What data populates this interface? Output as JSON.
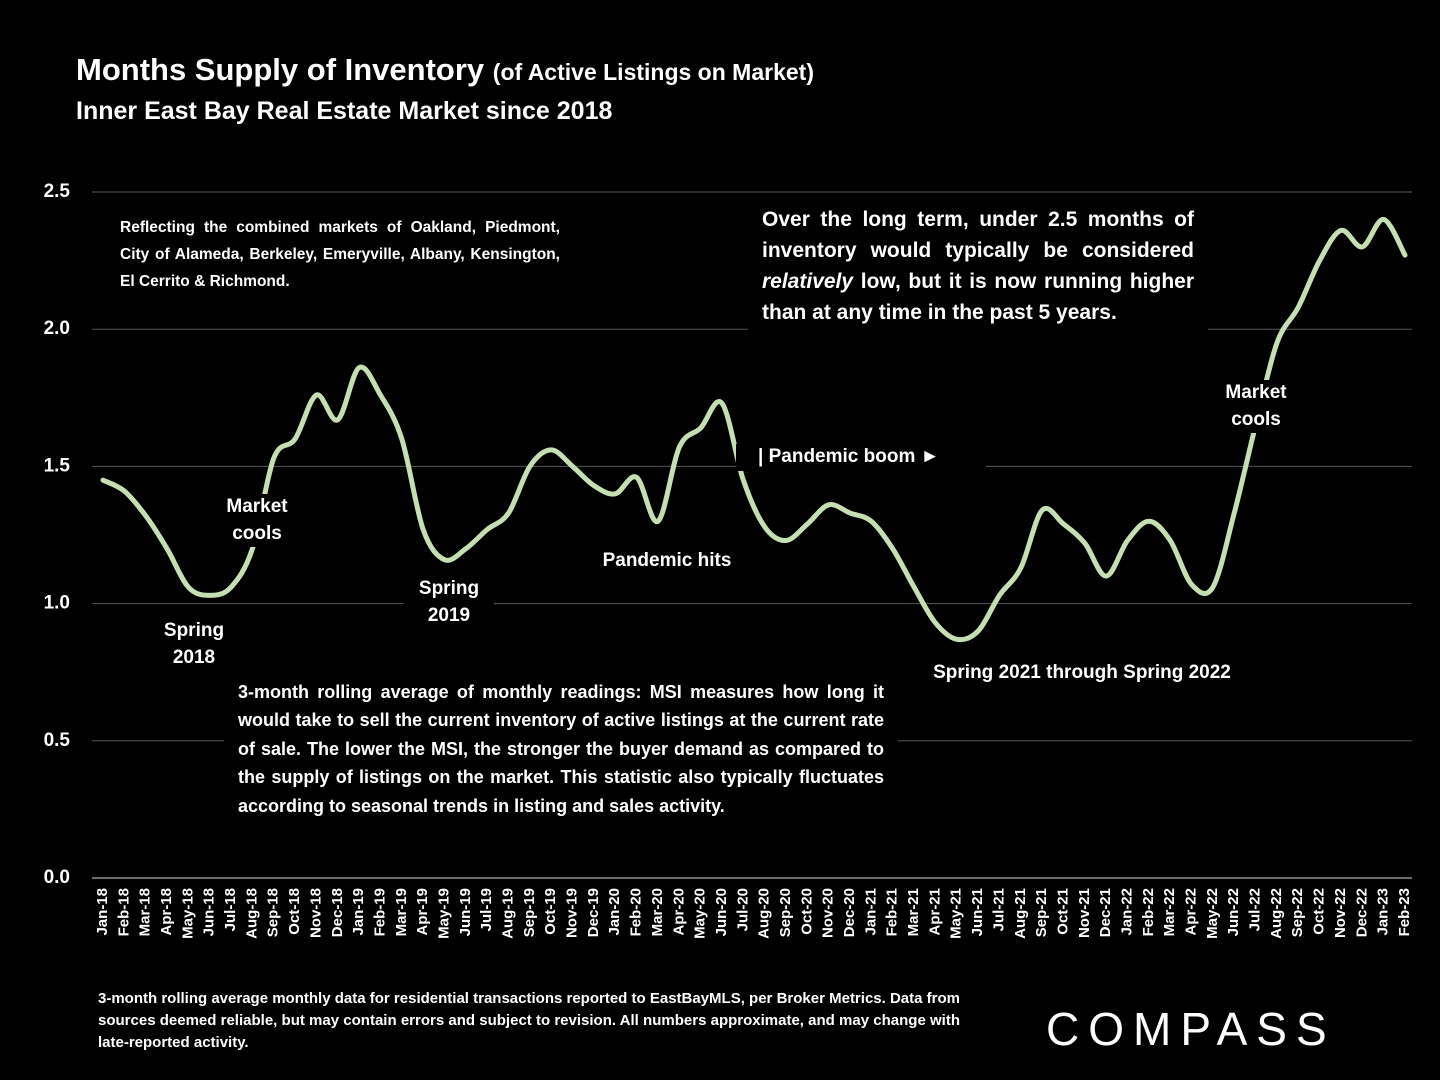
{
  "chart_data": {
    "type": "line",
    "title": "Months Supply of Inventory",
    "title_suffix": "(of Active Listings on Market)",
    "subtitle": "Inner East Bay Real Estate Market since 2018",
    "categories": [
      "Jan-18",
      "Feb-18",
      "Mar-18",
      "Apr-18",
      "May-18",
      "Jun-18",
      "Jul-18",
      "Aug-18",
      "Sep-18",
      "Oct-18",
      "Nov-18",
      "Dec-18",
      "Jan-19",
      "Feb-19",
      "Mar-19",
      "Apr-19",
      "May-19",
      "Jun-19",
      "Jul-19",
      "Aug-19",
      "Sep-19",
      "Oct-19",
      "Nov-19",
      "Dec-19",
      "Jan-20",
      "Feb-20",
      "Mar-20",
      "Apr-20",
      "May-20",
      "Jun-20",
      "Jul-20",
      "Aug-20",
      "Sep-20",
      "Oct-20",
      "Nov-20",
      "Dec-20",
      "Jan-21",
      "Feb-21",
      "Mar-21",
      "Apr-21",
      "May-21",
      "Jun-21",
      "Jul-21",
      "Aug-21",
      "Sep-21",
      "Oct-21",
      "Nov-21",
      "Dec-21",
      "Jan-22",
      "Feb-22",
      "Mar-22",
      "Apr-22",
      "May-22",
      "Jun-22",
      "Jul-22",
      "Aug-22",
      "Sep-22",
      "Oct-22",
      "Nov-22",
      "Dec-22",
      "Jan-23",
      "Feb-23"
    ],
    "series": [
      {
        "name": "Months Supply of Inventory",
        "color": "#c5dfb3",
        "values": [
          1.45,
          1.41,
          1.32,
          1.2,
          1.06,
          1.03,
          1.06,
          1.2,
          1.53,
          1.6,
          1.76,
          1.67,
          1.86,
          1.76,
          1.6,
          1.27,
          1.16,
          1.2,
          1.27,
          1.33,
          1.5,
          1.56,
          1.5,
          1.43,
          1.4,
          1.46,
          1.3,
          1.57,
          1.64,
          1.73,
          1.45,
          1.28,
          1.23,
          1.29,
          1.36,
          1.33,
          1.3,
          1.2,
          1.06,
          0.93,
          0.87,
          0.9,
          1.03,
          1.13,
          1.34,
          1.29,
          1.22,
          1.1,
          1.23,
          1.3,
          1.23,
          1.07,
          1.06,
          1.33,
          1.65,
          1.95,
          2.08,
          2.25,
          2.36,
          2.3,
          2.4,
          2.27
        ]
      }
    ],
    "ylim": [
      0,
      2.5
    ],
    "yticks": [
      {
        "value": 0,
        "label": "0.0"
      },
      0.5,
      {
        "value": 1,
        "label": "1.0"
      },
      1.5,
      {
        "value": 2,
        "label": "2.0"
      },
      2.5
    ],
    "grid": true,
    "annotations": {
      "spring_2018": "Spring 2018",
      "market_cools_2018": "Market cools",
      "spring_2019": "Spring 2019",
      "pandemic_hits": "Pandemic hits",
      "pandemic_boom": "| Pandemic boom ►",
      "market_cools_2022": "Market cools",
      "spring_2021_2022": "Spring 2021 through Spring 2022",
      "markets_note": "Reflecting the combined markets of Oakland, Piedmont, City of Alameda, Berkeley, Emeryville, Albany, Kensington, El Cerrito & Richmond.",
      "long_term_note": [
        "Over the long term, under 2.5 months of inventory would typically be considered ",
        "relatively",
        " low, but it is now running higher than at any time in the past 5 years."
      ],
      "msi_note": "3-month rolling average of monthly readings: MSI measures how long it would take to sell the current inventory of active listings at the current rate of sale. The lower the MSI, the stronger the buyer demand as compared to the supply of listings on the market. This statistic also typically fluctuates according to seasonal trends in listing and sales activity."
    },
    "footnote": "3-month rolling average monthly data for residential transactions reported to EastBayMLS, per Broker Metrics. Data from sources deemed reliable, but may contain errors and subject to revision. All numbers approximate, and may change with late-reported activity.",
    "logo": "COMPASS"
  }
}
